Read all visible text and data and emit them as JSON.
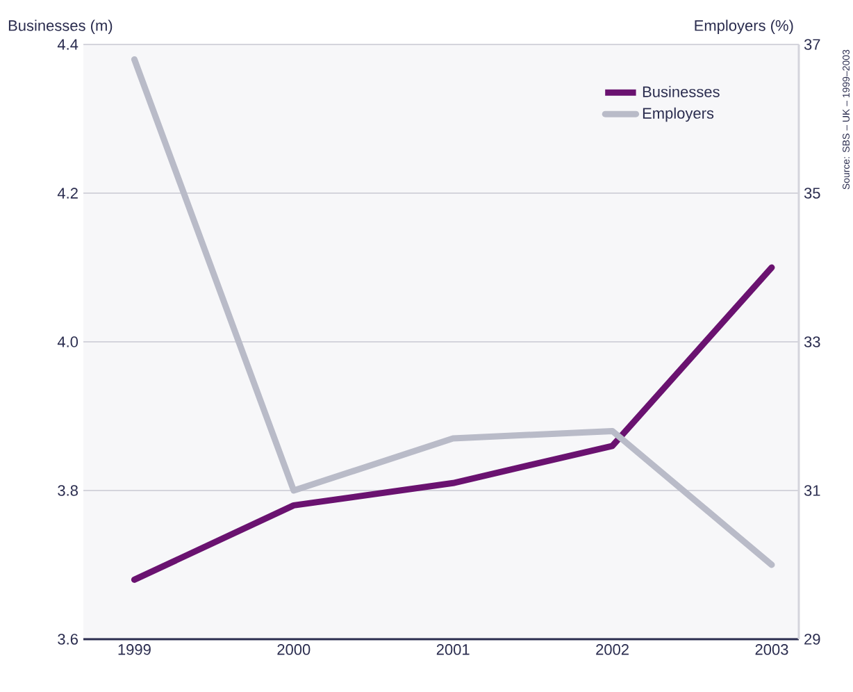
{
  "chart_data": {
    "type": "line",
    "xlabel": null,
    "ylabel": "Businesses (m)",
    "y2label": "Employers (%)",
    "categories": [
      "1999",
      "2000",
      "2001",
      "2002",
      "2003"
    ],
    "series": [
      {
        "name": "Businesses",
        "color": "#6a1270",
        "values": [
          3.68,
          3.78,
          3.81,
          3.86,
          4.1
        ]
      },
      {
        "name": "Employers",
        "color": "#b9bbc8",
        "axis": "y2",
        "values": [
          36.8,
          31.0,
          31.7,
          31.8,
          30.0
        ]
      }
    ],
    "ylim": [
      3.6,
      4.4
    ],
    "yticks": [
      3.6,
      3.8,
      {
        "value": 4.0,
        "label": "4.0"
      },
      4.2,
      4.4
    ],
    "y2lim": [
      29,
      37
    ],
    "y2ticks": [
      29,
      31,
      33,
      35,
      37
    ],
    "grid": "y",
    "legend": "top right",
    "marker": "none",
    "line_style": "solid",
    "annotations": [
      "Source: SBS – UK – 1999–2003"
    ]
  }
}
